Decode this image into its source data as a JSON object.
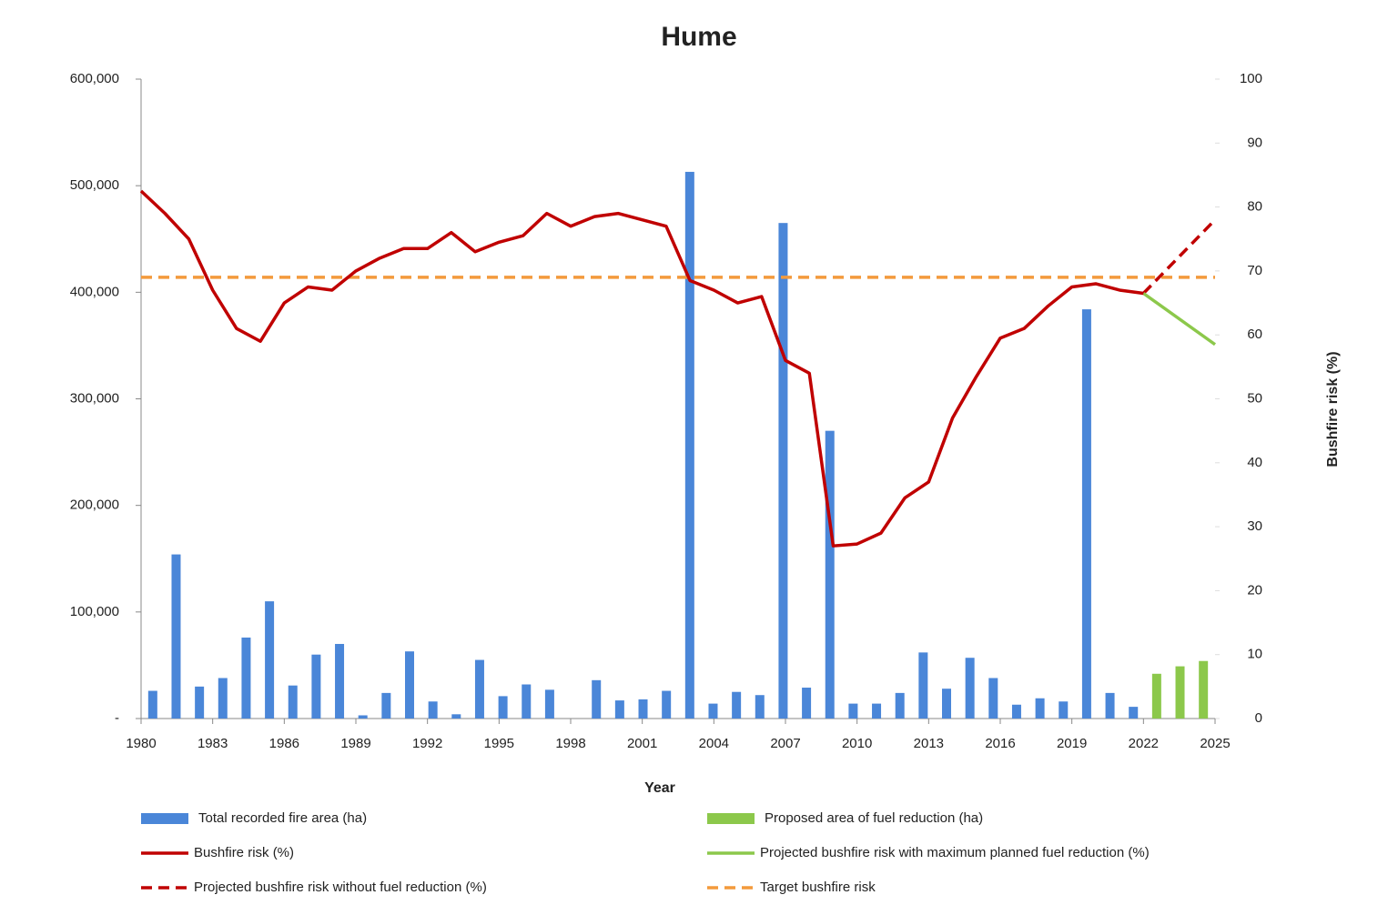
{
  "chart_data": {
    "type": "combo",
    "title": "Hume",
    "x_label": "Year",
    "y2_label": "Bushfire risk (%)",
    "xlim": [
      1980,
      2025
    ],
    "xticks": [
      1980,
      1983,
      1986,
      1989,
      1992,
      1995,
      1998,
      2001,
      2004,
      2007,
      2010,
      2013,
      2016,
      2019,
      2022,
      2025
    ],
    "ylim": [
      0,
      600000
    ],
    "yticks": [
      {
        "value": 0,
        "label": "-"
      },
      {
        "value": 100000,
        "label": "100,000"
      },
      {
        "value": 200000,
        "label": "200,000"
      },
      {
        "value": 300000,
        "label": "300,000"
      },
      {
        "value": 400000,
        "label": "400,000"
      },
      {
        "value": 500000,
        "label": "500,000"
      },
      {
        "value": 600000,
        "label": "600,000"
      }
    ],
    "y2lim": [
      0,
      100
    ],
    "y2ticks": [
      0,
      10,
      20,
      30,
      40,
      50,
      60,
      70,
      80,
      90,
      100
    ],
    "series": [
      {
        "name": "Total recorded fire area (ha)",
        "type": "bar",
        "color": "#4a86d8",
        "x": [
          1980,
          1981,
          1982,
          1983,
          1984,
          1985,
          1986,
          1987,
          1988,
          1989,
          1990,
          1991,
          1992,
          1993,
          1994,
          1995,
          1996,
          1997,
          1998,
          1999,
          2000,
          2001,
          2002,
          2003,
          2004,
          2005,
          2006,
          2007,
          2008,
          2009,
          2010,
          2011,
          2012,
          2013,
          2014,
          2015,
          2016,
          2017,
          2018,
          2019,
          2020,
          2021,
          2022
        ],
        "values": [
          26000,
          154000,
          30000,
          38000,
          76000,
          110000,
          31000,
          60000,
          70000,
          3000,
          24000,
          63000,
          16000,
          4000,
          55000,
          21000,
          32000,
          27000,
          0,
          36000,
          17000,
          18000,
          26000,
          513000,
          14000,
          25000,
          22000,
          465000,
          29000,
          270000,
          14000,
          14000,
          24000,
          62000,
          28000,
          57000,
          38000,
          13000,
          19000,
          16000,
          384000,
          24000,
          11000
        ]
      },
      {
        "name": "Proposed area of fuel reduction (ha)",
        "type": "bar",
        "color": "#8cc84b",
        "x": [
          2023,
          2024,
          2025
        ],
        "values": [
          42000,
          49000,
          54000
        ]
      },
      {
        "name": "Bushfire risk (%)",
        "type": "line",
        "axis": "y2",
        "color": "#c00000",
        "style": "solid",
        "x": [
          1980,
          1981,
          1982,
          1983,
          1984,
          1985,
          1986,
          1987,
          1988,
          1989,
          1990,
          1991,
          1992,
          1993,
          1994,
          1995,
          1996,
          1997,
          1998,
          1999,
          2000,
          2001,
          2002,
          2003,
          2004,
          2005,
          2006,
          2007,
          2008,
          2009,
          2010,
          2011,
          2012,
          2013,
          2014,
          2015,
          2016,
          2017,
          2018,
          2019,
          2020,
          2021,
          2022
        ],
        "values": [
          82.5,
          79,
          75,
          67,
          61,
          59,
          65,
          67.5,
          67,
          70,
          72,
          73.5,
          73.5,
          76,
          73,
          74.5,
          75.5,
          79,
          77,
          78.5,
          79,
          78,
          77,
          68.5,
          67,
          65,
          66,
          56,
          54,
          27,
          27.3,
          29,
          34.5,
          37,
          47,
          53.5,
          59.5,
          61,
          64.5,
          67.5,
          68,
          67,
          66.5
        ]
      },
      {
        "name": "Projected bushfire risk with maximum planned fuel reduction (%)",
        "type": "line",
        "axis": "y2",
        "color": "#8cc84b",
        "style": "solid",
        "x": [
          2022,
          2025
        ],
        "values": [
          66.5,
          58.5
        ]
      },
      {
        "name": "Projected bushfire risk without fuel reduction (%)",
        "type": "line",
        "axis": "y2",
        "color": "#c00000",
        "style": "dashed",
        "x": [
          2022,
          2025
        ],
        "values": [
          66.5,
          78
        ]
      },
      {
        "name": "Target bushfire risk",
        "type": "line",
        "axis": "y2",
        "color": "#f39a3c",
        "style": "dashed",
        "x": [
          1980,
          2025
        ],
        "values": [
          69,
          69
        ]
      }
    ]
  }
}
